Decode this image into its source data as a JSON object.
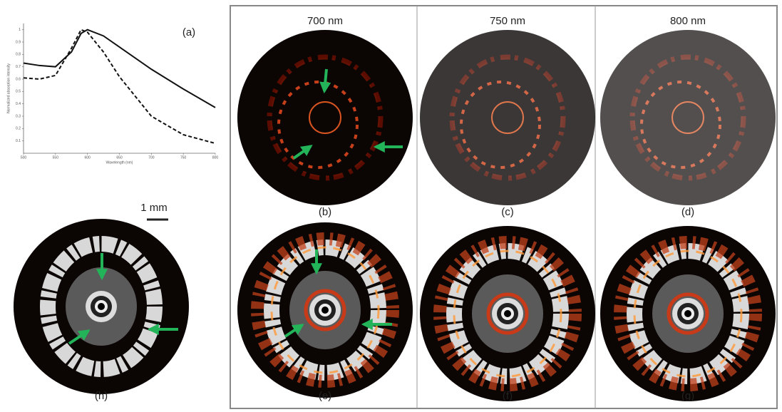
{
  "panels": {
    "a": "(a)",
    "b": "(b)",
    "c": "(c)",
    "d": "(d)",
    "e": "(e)",
    "f": "(f)",
    "g": "(g)",
    "h": "(h)"
  },
  "columns": [
    "700 nm",
    "750 nm",
    "800 nm"
  ],
  "scale_bar": "1 mm",
  "plot": {
    "type": "line",
    "xlabel": "Wavelength (nm)",
    "ylabel": "Normalized absorption intensity",
    "x": [
      500,
      525,
      550,
      575,
      590,
      600,
      625,
      650,
      700,
      750,
      800
    ],
    "series": [
      {
        "style": "solid",
        "color": "#111111",
        "values": [
          0.73,
          0.71,
          0.7,
          0.82,
          0.97,
          1.0,
          0.95,
          0.86,
          0.68,
          0.52,
          0.37
        ]
      },
      {
        "style": "dashed",
        "color": "#111111",
        "values": [
          0.61,
          0.6,
          0.63,
          0.85,
          1.0,
          0.98,
          0.82,
          0.62,
          0.3,
          0.15,
          0.08
        ]
      }
    ],
    "xlim": [
      500,
      800
    ],
    "ylim": [
      0,
      1.05
    ],
    "xticks": [
      500,
      550,
      600,
      650,
      700,
      750,
      800
    ],
    "yticks": [
      0.1,
      0.2,
      0.3,
      0.4,
      0.5,
      0.6,
      0.7,
      0.8,
      0.9,
      1
    ]
  }
}
